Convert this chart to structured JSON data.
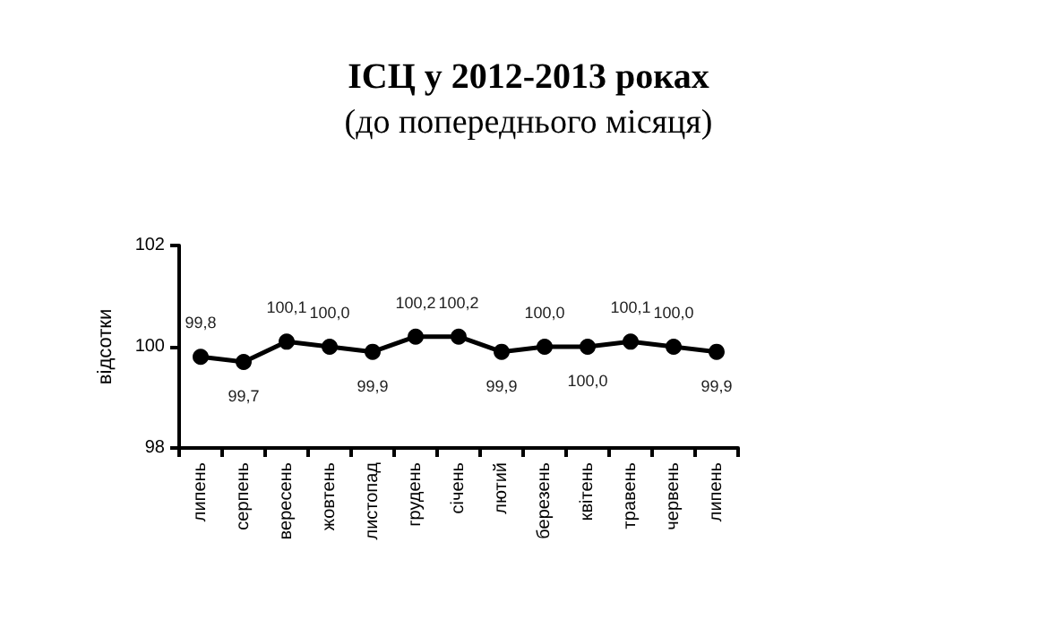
{
  "chart_data": {
    "type": "line",
    "title": "ІСЦ у 2012-2013 роках",
    "subtitle": "(до попереднього місяця)",
    "ylabel": "відсотки",
    "categories": [
      "липень",
      "серпень",
      "вересень",
      "жовтень",
      "листопад",
      "грудень",
      "січень",
      "лютий",
      "березень",
      "квітень",
      "травень",
      "червень",
      "липень"
    ],
    "series": [
      {
        "color": "#000000",
        "values": [
          99.8,
          99.7,
          100.1,
          100.0,
          99.9,
          100.2,
          100.2,
          99.9,
          100.0,
          100.0,
          100.1,
          100.0,
          99.9
        ],
        "value_labels": [
          "99,8",
          "99,7",
          "100,1",
          "100,0",
          "99,9",
          "100,2",
          "100,2",
          "99,9",
          "100,0",
          "100,0",
          "100,1",
          "100,0",
          "99,9"
        ]
      }
    ],
    "ylim": [
      98,
      102
    ],
    "yticks": [
      98,
      100,
      102
    ],
    "grid": false,
    "marker": "circle",
    "line_style": "solid"
  }
}
